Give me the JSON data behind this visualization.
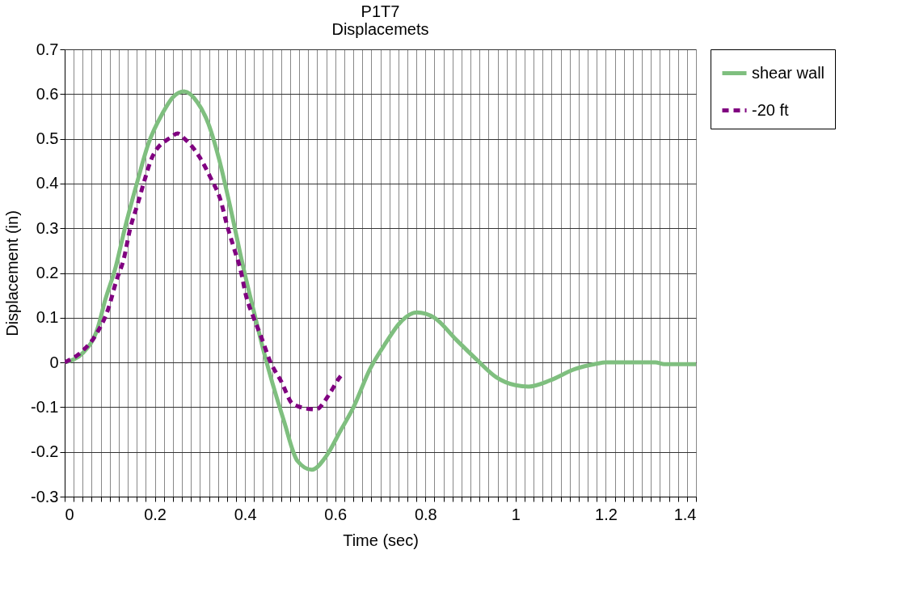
{
  "chart_data": {
    "type": "line",
    "title": [
      "P1T7",
      "Displacemets"
    ],
    "xlabel": "Time (sec)",
    "ylabel": "Displacement (in)",
    "xlim": [
      0,
      1.4
    ],
    "ylim": [
      -0.3,
      0.7
    ],
    "xticks": [
      0,
      {
        "value": 0.02,
        "label": null
      },
      {
        "value": 0.04,
        "label": null
      },
      {
        "value": 0.06,
        "label": null
      },
      {
        "value": 0.08,
        "label": null
      },
      {
        "value": 0.1,
        "label": null
      },
      {
        "value": 0.12,
        "label": null
      },
      {
        "value": 0.14,
        "label": null
      },
      {
        "value": 0.16,
        "label": null
      },
      {
        "value": 0.18,
        "label": null
      },
      0.2,
      {
        "value": 0.22,
        "label": null
      },
      {
        "value": 0.24,
        "label": null
      },
      {
        "value": 0.26,
        "label": null
      },
      {
        "value": 0.28,
        "label": null
      },
      {
        "value": 0.3,
        "label": null
      },
      {
        "value": 0.32,
        "label": null
      },
      {
        "value": 0.34,
        "label": null
      },
      {
        "value": 0.36,
        "label": null
      },
      {
        "value": 0.38,
        "label": null
      },
      0.4,
      {
        "value": 0.42,
        "label": null
      },
      {
        "value": 0.44,
        "label": null
      },
      {
        "value": 0.46,
        "label": null
      },
      {
        "value": 0.48,
        "label": null
      },
      {
        "value": 0.5,
        "label": null
      },
      {
        "value": 0.52,
        "label": null
      },
      {
        "value": 0.54,
        "label": null
      },
      {
        "value": 0.56,
        "label": null
      },
      {
        "value": 0.58,
        "label": null
      },
      0.6,
      {
        "value": 0.62,
        "label": null
      },
      {
        "value": 0.64,
        "label": null
      },
      {
        "value": 0.66,
        "label": null
      },
      {
        "value": 0.68,
        "label": null
      },
      {
        "value": 0.7,
        "label": null
      },
      {
        "value": 0.72,
        "label": null
      },
      {
        "value": 0.74,
        "label": null
      },
      {
        "value": 0.76,
        "label": null
      },
      {
        "value": 0.78,
        "label": null
      },
      0.8,
      {
        "value": 0.82,
        "label": null
      },
      {
        "value": 0.84,
        "label": null
      },
      {
        "value": 0.86,
        "label": null
      },
      {
        "value": 0.88,
        "label": null
      },
      {
        "value": 0.9,
        "label": null
      },
      {
        "value": 0.92,
        "label": null
      },
      {
        "value": 0.94,
        "label": null
      },
      {
        "value": 0.96,
        "label": null
      },
      {
        "value": 0.98,
        "label": null
      },
      1,
      {
        "value": 1.02,
        "label": null
      },
      {
        "value": 1.04,
        "label": null
      },
      {
        "value": 1.06,
        "label": null
      },
      {
        "value": 1.08,
        "label": null
      },
      {
        "value": 1.1,
        "label": null
      },
      {
        "value": 1.12,
        "label": null
      },
      {
        "value": 1.14,
        "label": null
      },
      {
        "value": 1.16,
        "label": null
      },
      {
        "value": 1.18,
        "label": null
      },
      1.2,
      {
        "value": 1.22,
        "label": null
      },
      {
        "value": 1.24,
        "label": null
      },
      {
        "value": 1.26,
        "label": null
      },
      {
        "value": 1.28,
        "label": null
      },
      {
        "value": 1.3,
        "label": null
      },
      {
        "value": 1.32,
        "label": null
      },
      {
        "value": 1.34,
        "label": null
      },
      {
        "value": 1.36,
        "label": null
      },
      {
        "value": 1.38,
        "label": null
      },
      1.4
    ],
    "yticks": [
      -0.3,
      -0.2,
      -0.1,
      0,
      0.1,
      0.2,
      0.3,
      0.4,
      0.5,
      0.6,
      0.7
    ],
    "grid": true,
    "legend": "right",
    "marker": "none",
    "series": [
      {
        "name": "shear wall",
        "color": "#7fbf7f",
        "line_style": "solid",
        "x": [
          0,
          0.041,
          0.073,
          0.09,
          0.113,
          0.133,
          0.16,
          0.186,
          0.217,
          0.24,
          0.265,
          0.294,
          0.319,
          0.342,
          0.366,
          0.396,
          0.42,
          0.444,
          0.486,
          0.516,
          0.548,
          0.581,
          0.611,
          0.641,
          0.677,
          0.713,
          0.742,
          0.781,
          0.82,
          0.868,
          0.916,
          0.957,
          1.0,
          1.029,
          1.077,
          1.131,
          1.179,
          1.2,
          1.31,
          1.33,
          1.4
        ],
        "values": [
          0,
          0.022,
          0.076,
          0.14,
          0.213,
          0.298,
          0.4,
          0.49,
          0.557,
          0.593,
          0.606,
          0.582,
          0.533,
          0.456,
          0.353,
          0.213,
          0.112,
          0.015,
          -0.13,
          -0.22,
          -0.24,
          -0.208,
          -0.154,
          -0.099,
          -0.015,
          0.045,
          0.087,
          0.112,
          0.1,
          0.051,
          0.004,
          -0.033,
          -0.051,
          -0.054,
          -0.04,
          -0.015,
          -0.003,
          0,
          0,
          -0.004,
          -0.004
        ]
      },
      {
        "name": "-20 ft",
        "color": "#800080",
        "line_style": "dashed",
        "x": [
          0,
          0.041,
          0.07,
          0.097,
          0.115,
          0.131,
          0.145,
          0.163,
          0.177,
          0.195,
          0.235,
          0.25,
          0.265,
          0.298,
          0.324,
          0.346,
          0.36,
          0.375,
          0.391,
          0.402,
          0.418,
          0.437,
          0.455,
          0.48,
          0.507,
          0.557,
          0.588,
          0.608,
          0.615
        ],
        "values": [
          0,
          0.027,
          0.063,
          0.121,
          0.184,
          0.231,
          0.298,
          0.358,
          0.407,
          0.461,
          0.503,
          0.512,
          0.501,
          0.461,
          0.412,
          0.362,
          0.307,
          0.257,
          0.203,
          0.15,
          0.103,
          0.054,
          0.004,
          -0.042,
          -0.094,
          -0.105,
          -0.069,
          -0.036,
          -0.027
        ]
      }
    ]
  }
}
